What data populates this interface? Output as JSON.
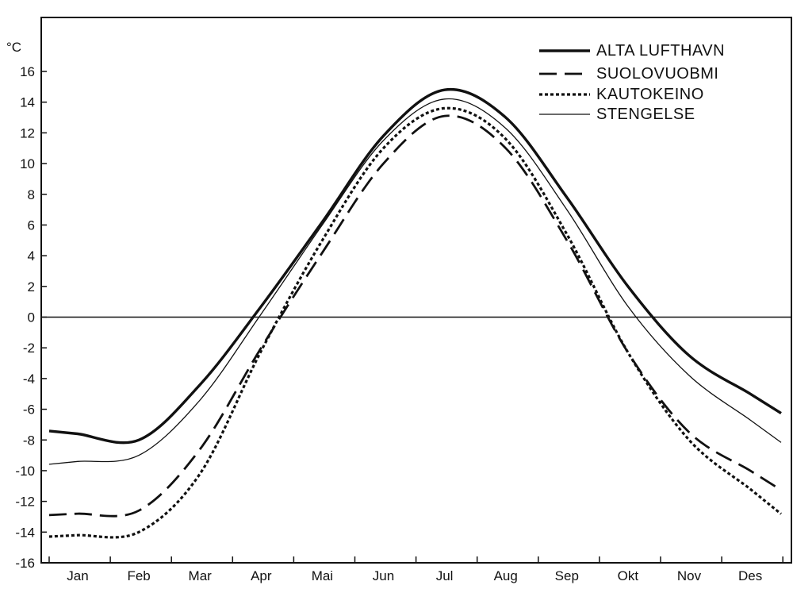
{
  "chart_data": {
    "type": "line",
    "title": "",
    "xlabel": "",
    "ylabel": "°C",
    "ylim": [
      -16,
      16
    ],
    "yticks": [
      16,
      14,
      12,
      10,
      8,
      6,
      4,
      2,
      0,
      -2,
      -4,
      -6,
      -8,
      -10,
      -12,
      -14,
      -16
    ],
    "categories": [
      "Jan",
      "Feb",
      "Mar",
      "Apr",
      "Mai",
      "Jun",
      "Jul",
      "Aug",
      "Sep",
      "Okt",
      "Nov",
      "Des"
    ],
    "grid": false,
    "zero_line": true,
    "legend_position": "top-right",
    "series": [
      {
        "name": "ALTA LUFTHAVN",
        "style": "thick-solid",
        "values": [
          -7.6,
          -8.0,
          -4.4,
          0.7,
          6.2,
          11.8,
          14.8,
          13.0,
          7.8,
          2.0,
          -2.5,
          -5.0
        ]
      },
      {
        "name": "SUOLOVUOBMI",
        "style": "dashed",
        "values": [
          -12.8,
          -12.6,
          -8.6,
          -2.0,
          4.2,
          10.0,
          13.1,
          11.0,
          5.0,
          -2.3,
          -7.5,
          -10.0
        ]
      },
      {
        "name": "KAUTOKEINO",
        "style": "dotted",
        "values": [
          -14.2,
          -14.0,
          -10.2,
          -2.2,
          5.0,
          11.0,
          13.6,
          11.6,
          5.4,
          -2.3,
          -8.0,
          -11.2
        ]
      },
      {
        "name": "STENGELSE",
        "style": "thin-solid",
        "values": [
          -9.4,
          -9.0,
          -5.4,
          0.2,
          6.0,
          11.5,
          14.2,
          12.3,
          7.0,
          0.7,
          -3.8,
          -6.7
        ]
      }
    ]
  }
}
